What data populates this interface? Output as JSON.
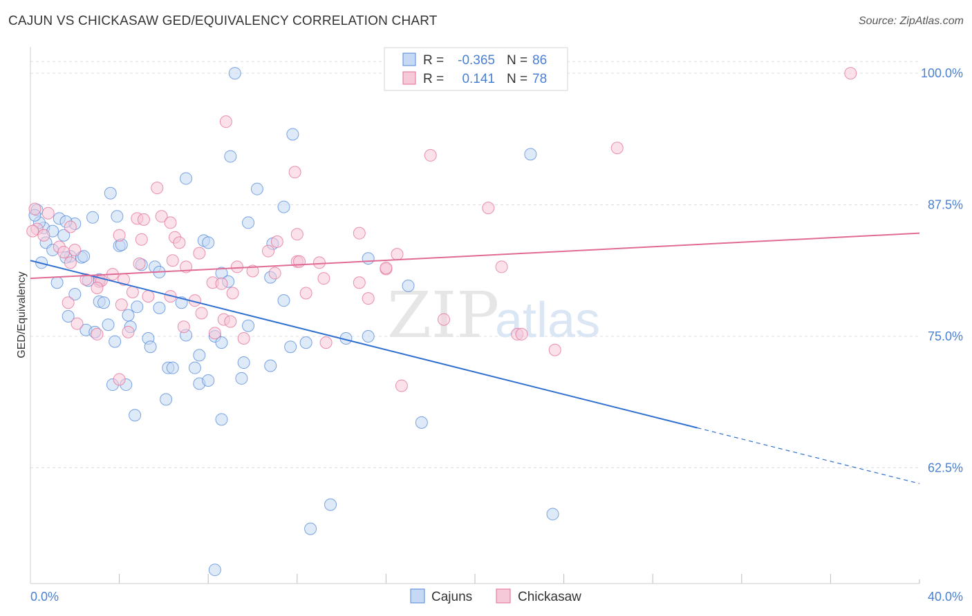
{
  "header": {
    "title": "CAJUN VS CHICKASAW GED/EQUIVALENCY CORRELATION CHART",
    "source": "Source: ZipAtlas.com"
  },
  "watermark": {
    "zip": "ZIP",
    "atlas": "atlas"
  },
  "legend": {
    "rows": [
      {
        "r_label": "R =",
        "r_value": "-0.365",
        "n_label": "N =",
        "n_value": "86"
      },
      {
        "r_label": "R =",
        "r_value": "0.141",
        "n_label": "N =",
        "n_value": "78"
      }
    ]
  },
  "colors": {
    "cajuns": "#4f86d9",
    "cajuns_fill": "#c5d9f4",
    "chickasaw": "#e36c96",
    "chickasaw_fill": "#f6c9d8",
    "axis_label": "#4a7fd1",
    "grid": "#dddddd"
  },
  "chart_data": {
    "type": "scatter",
    "title": "CAJUN VS CHICKASAW GED/EQUIVALENCY CORRELATION CHART",
    "xlabel": "",
    "ylabel": "GED/Equivalency",
    "x_tick_labels": [
      "0.0%",
      "40.0%"
    ],
    "y_tick_labels": [
      "100.0%",
      "87.5%",
      "75.0%",
      "62.5%"
    ],
    "y_ticks": [
      100.0,
      87.5,
      75.0,
      62.5
    ],
    "xlim": [
      0,
      40
    ],
    "ylim": [
      51.5,
      102.5
    ],
    "grid": true,
    "legend_position": "top-center",
    "bottom_legend": [
      "Cajuns",
      "Chickasaw"
    ],
    "series": [
      {
        "name": "Cajuns",
        "r": -0.365,
        "n": 86,
        "trend": {
          "x0": 0,
          "y0": 82.2,
          "x1": 30,
          "y1": 66.3,
          "dashed_to_x": 40,
          "dashed_to_y": 61.0
        },
        "points": [
          [
            9.2,
            100
          ],
          [
            11.8,
            94.2
          ],
          [
            9.0,
            92.1
          ],
          [
            22.5,
            92.3
          ],
          [
            8.3,
            52.8
          ],
          [
            13.5,
            59.0
          ],
          [
            12.6,
            56.7
          ],
          [
            23.5,
            58.1
          ],
          [
            7.0,
            90.0
          ],
          [
            10.2,
            89.0
          ],
          [
            11.4,
            87.3
          ],
          [
            3.6,
            88.6
          ],
          [
            0.3,
            87.0
          ],
          [
            1.3,
            86.2
          ],
          [
            2.8,
            86.3
          ],
          [
            3.9,
            86.4
          ],
          [
            0.6,
            85.3
          ],
          [
            1.0,
            85.0
          ],
          [
            1.5,
            84.6
          ],
          [
            0.4,
            85.8
          ],
          [
            2.0,
            85.7
          ],
          [
            1.6,
            85.9
          ],
          [
            9.8,
            85.8
          ],
          [
            4.0,
            83.6
          ],
          [
            4.1,
            83.7
          ],
          [
            7.8,
            84.1
          ],
          [
            8.0,
            83.9
          ],
          [
            10.9,
            83.8
          ],
          [
            0.7,
            83.9
          ],
          [
            1.0,
            83.2
          ],
          [
            1.8,
            82.6
          ],
          [
            2.3,
            82.5
          ],
          [
            2.4,
            82.6
          ],
          [
            0.5,
            82.0
          ],
          [
            5.0,
            81.8
          ],
          [
            5.6,
            81.6
          ],
          [
            5.8,
            81.1
          ],
          [
            8.6,
            81.0
          ],
          [
            10.8,
            80.6
          ],
          [
            15.2,
            82.4
          ],
          [
            2.6,
            80.3
          ],
          [
            3.1,
            80.4
          ],
          [
            1.2,
            80.1
          ],
          [
            8.9,
            80.2
          ],
          [
            17.0,
            79.8
          ],
          [
            2.0,
            79.0
          ],
          [
            3.1,
            78.3
          ],
          [
            3.3,
            78.2
          ],
          [
            6.8,
            78.2
          ],
          [
            11.4,
            78.4
          ],
          [
            1.7,
            76.9
          ],
          [
            4.4,
            77.0
          ],
          [
            4.8,
            77.8
          ],
          [
            5.8,
            77.7
          ],
          [
            2.5,
            75.6
          ],
          [
            2.9,
            75.4
          ],
          [
            3.5,
            76.1
          ],
          [
            4.5,
            75.9
          ],
          [
            7.0,
            75.1
          ],
          [
            8.3,
            75.0
          ],
          [
            14.2,
            74.8
          ],
          [
            15.2,
            75.0
          ],
          [
            3.8,
            74.5
          ],
          [
            5.3,
            74.8
          ],
          [
            8.6,
            74.4
          ],
          [
            12.4,
            74.4
          ],
          [
            5.4,
            74.0
          ],
          [
            11.7,
            74.0
          ],
          [
            7.6,
            73.2
          ],
          [
            9.6,
            72.5
          ],
          [
            6.2,
            72.0
          ],
          [
            6.4,
            72.0
          ],
          [
            7.4,
            72.0
          ],
          [
            10.8,
            72.2
          ],
          [
            9.5,
            71.0
          ],
          [
            7.6,
            70.5
          ],
          [
            8.0,
            70.8
          ],
          [
            3.7,
            70.4
          ],
          [
            4.3,
            70.4
          ],
          [
            6.1,
            69.0
          ],
          [
            4.7,
            67.5
          ],
          [
            8.6,
            67.1
          ],
          [
            17.6,
            66.8
          ],
          [
            1.6,
            82.5
          ],
          [
            0.2,
            86.5
          ],
          [
            9.8,
            76.0
          ]
        ]
      },
      {
        "name": "Chickasaw",
        "r": 0.141,
        "n": 78,
        "trend": {
          "x0": 0,
          "y0": 80.5,
          "x1": 40,
          "y1": 84.8
        },
        "points": [
          [
            36.9,
            100
          ],
          [
            8.8,
            95.4
          ],
          [
            26.4,
            92.9
          ],
          [
            18.0,
            92.2
          ],
          [
            11.9,
            90.6
          ],
          [
            5.7,
            89.1
          ],
          [
            20.6,
            87.2
          ],
          [
            5.9,
            86.4
          ],
          [
            4.8,
            86.2
          ],
          [
            5.1,
            86.1
          ],
          [
            0.8,
            86.7
          ],
          [
            0.3,
            85.2
          ],
          [
            6.3,
            85.8
          ],
          [
            1.8,
            85.4
          ],
          [
            14.8,
            84.8
          ],
          [
            12.0,
            84.7
          ],
          [
            4.0,
            84.6
          ],
          [
            0.6,
            84.6
          ],
          [
            6.5,
            84.4
          ],
          [
            6.7,
            83.9
          ],
          [
            11.1,
            84.0
          ],
          [
            1.3,
            83.5
          ],
          [
            2.0,
            83.2
          ],
          [
            10.7,
            83.1
          ],
          [
            1.5,
            83.0
          ],
          [
            7.6,
            82.9
          ],
          [
            16.5,
            82.8
          ],
          [
            6.4,
            82.2
          ],
          [
            12.0,
            82.1
          ],
          [
            13.0,
            82.0
          ],
          [
            1.8,
            82.0
          ],
          [
            4.9,
            81.9
          ],
          [
            7.0,
            81.6
          ],
          [
            9.3,
            81.6
          ],
          [
            10.0,
            81.2
          ],
          [
            16.0,
            81.4
          ],
          [
            21.2,
            81.6
          ],
          [
            3.7,
            80.9
          ],
          [
            11.0,
            81.0
          ],
          [
            13.2,
            80.5
          ],
          [
            2.5,
            80.4
          ],
          [
            3.1,
            80.2
          ],
          [
            3.2,
            80.3
          ],
          [
            4.2,
            80.4
          ],
          [
            8.2,
            80.1
          ],
          [
            8.6,
            80.0
          ],
          [
            14.8,
            80.1
          ],
          [
            3.0,
            79.6
          ],
          [
            4.6,
            79.2
          ],
          [
            9.1,
            79.1
          ],
          [
            12.4,
            79.1
          ],
          [
            15.2,
            78.6
          ],
          [
            1.7,
            78.2
          ],
          [
            4.1,
            78.0
          ],
          [
            5.3,
            78.8
          ],
          [
            6.3,
            78.8
          ],
          [
            7.4,
            78.4
          ],
          [
            7.7,
            77.2
          ],
          [
            8.7,
            76.6
          ],
          [
            9.0,
            76.4
          ],
          [
            2.1,
            76.2
          ],
          [
            6.9,
            75.9
          ],
          [
            18.6,
            76.6
          ],
          [
            4.4,
            75.4
          ],
          [
            8.3,
            75.3
          ],
          [
            3.0,
            75.2
          ],
          [
            21.9,
            75.2
          ],
          [
            22.1,
            75.2
          ],
          [
            9.6,
            74.8
          ],
          [
            13.3,
            74.4
          ],
          [
            23.6,
            73.7
          ],
          [
            16.7,
            70.3
          ],
          [
            4.0,
            70.9
          ],
          [
            0.2,
            87.1
          ],
          [
            0.1,
            85.0
          ],
          [
            5.0,
            84.2
          ],
          [
            16.0,
            81.5
          ],
          [
            12.1,
            82.1
          ]
        ]
      }
    ]
  }
}
